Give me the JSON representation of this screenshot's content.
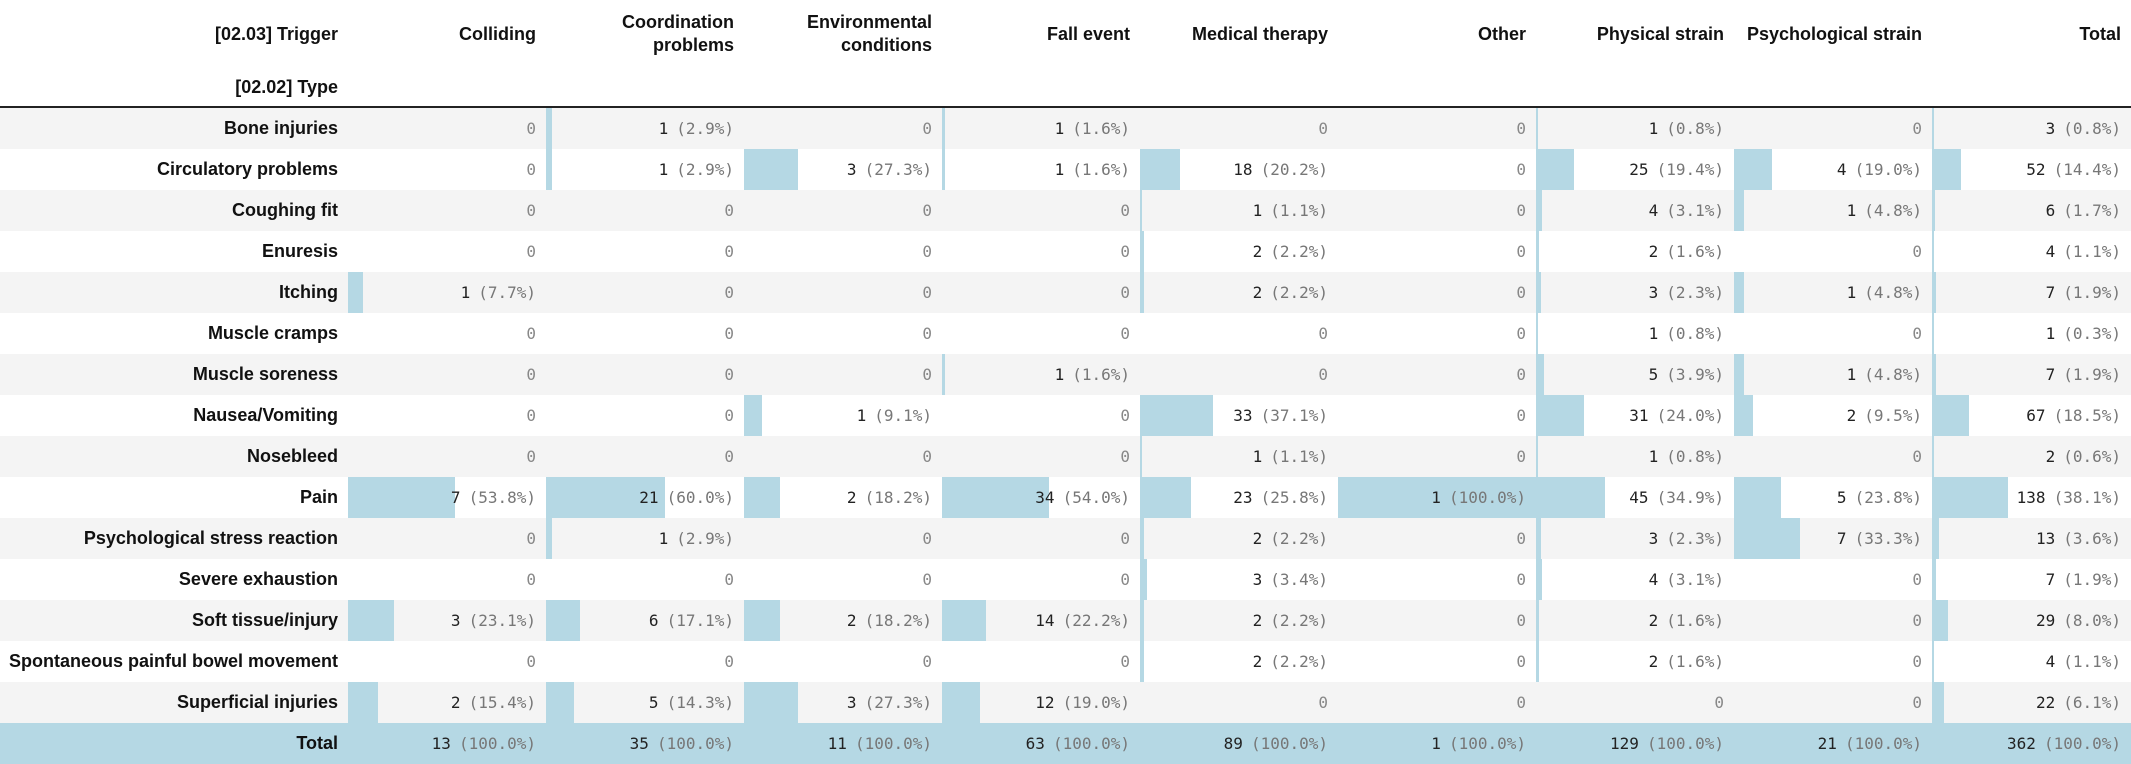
{
  "header": {
    "trigger_label": "[02.03] Trigger",
    "type_label": "[02.02] Type",
    "columns": [
      "Colliding",
      "Coordination problems",
      "Environmental conditions",
      "Fall event",
      "Medical therapy",
      "Other",
      "Physical strain",
      "Psychological strain",
      "Total"
    ]
  },
  "rows": [
    {
      "label": "Bone injuries",
      "cells": [
        {
          "n": "0",
          "p": ""
        },
        {
          "n": "1",
          "p": "(2.9%)",
          "frac": 0.029
        },
        {
          "n": "0",
          "p": ""
        },
        {
          "n": "1",
          "p": "(1.6%)",
          "frac": 0.016
        },
        {
          "n": "0",
          "p": ""
        },
        {
          "n": "0",
          "p": ""
        },
        {
          "n": "1",
          "p": "(0.8%)",
          "frac": 0.008
        },
        {
          "n": "0",
          "p": ""
        },
        {
          "n": "3",
          "p": "(0.8%)",
          "frac": 0.008
        }
      ]
    },
    {
      "label": "Circulatory problems",
      "cells": [
        {
          "n": "0",
          "p": ""
        },
        {
          "n": "1",
          "p": "(2.9%)",
          "frac": 0.029
        },
        {
          "n": "3",
          "p": "(27.3%)",
          "frac": 0.273
        },
        {
          "n": "1",
          "p": "(1.6%)",
          "frac": 0.016
        },
        {
          "n": "18",
          "p": "(20.2%)",
          "frac": 0.202
        },
        {
          "n": "0",
          "p": ""
        },
        {
          "n": "25",
          "p": "(19.4%)",
          "frac": 0.194
        },
        {
          "n": "4",
          "p": "(19.0%)",
          "frac": 0.19
        },
        {
          "n": "52",
          "p": "(14.4%)",
          "frac": 0.144
        }
      ]
    },
    {
      "label": "Coughing fit",
      "cells": [
        {
          "n": "0",
          "p": ""
        },
        {
          "n": "0",
          "p": ""
        },
        {
          "n": "0",
          "p": ""
        },
        {
          "n": "0",
          "p": ""
        },
        {
          "n": "1",
          "p": "(1.1%)",
          "frac": 0.011
        },
        {
          "n": "0",
          "p": ""
        },
        {
          "n": "4",
          "p": "(3.1%)",
          "frac": 0.031
        },
        {
          "n": "1",
          "p": "(4.8%)",
          "frac": 0.048
        },
        {
          "n": "6",
          "p": "(1.7%)",
          "frac": 0.017
        }
      ]
    },
    {
      "label": "Enuresis",
      "cells": [
        {
          "n": "0",
          "p": ""
        },
        {
          "n": "0",
          "p": ""
        },
        {
          "n": "0",
          "p": ""
        },
        {
          "n": "0",
          "p": ""
        },
        {
          "n": "2",
          "p": "(2.2%)",
          "frac": 0.022
        },
        {
          "n": "0",
          "p": ""
        },
        {
          "n": "2",
          "p": "(1.6%)",
          "frac": 0.016
        },
        {
          "n": "0",
          "p": ""
        },
        {
          "n": "4",
          "p": "(1.1%)",
          "frac": 0.011
        }
      ]
    },
    {
      "label": "Itching",
      "cells": [
        {
          "n": "1",
          "p": "(7.7%)",
          "frac": 0.077
        },
        {
          "n": "0",
          "p": ""
        },
        {
          "n": "0",
          "p": ""
        },
        {
          "n": "0",
          "p": ""
        },
        {
          "n": "2",
          "p": "(2.2%)",
          "frac": 0.022
        },
        {
          "n": "0",
          "p": ""
        },
        {
          "n": "3",
          "p": "(2.3%)",
          "frac": 0.023
        },
        {
          "n": "1",
          "p": "(4.8%)",
          "frac": 0.048
        },
        {
          "n": "7",
          "p": "(1.9%)",
          "frac": 0.019
        }
      ]
    },
    {
      "label": "Muscle cramps",
      "cells": [
        {
          "n": "0",
          "p": ""
        },
        {
          "n": "0",
          "p": ""
        },
        {
          "n": "0",
          "p": ""
        },
        {
          "n": "0",
          "p": ""
        },
        {
          "n": "0",
          "p": ""
        },
        {
          "n": "0",
          "p": ""
        },
        {
          "n": "1",
          "p": "(0.8%)",
          "frac": 0.008
        },
        {
          "n": "0",
          "p": ""
        },
        {
          "n": "1",
          "p": "(0.3%)",
          "frac": 0.003
        }
      ]
    },
    {
      "label": "Muscle soreness",
      "cells": [
        {
          "n": "0",
          "p": ""
        },
        {
          "n": "0",
          "p": ""
        },
        {
          "n": "0",
          "p": ""
        },
        {
          "n": "1",
          "p": "(1.6%)",
          "frac": 0.016
        },
        {
          "n": "0",
          "p": ""
        },
        {
          "n": "0",
          "p": ""
        },
        {
          "n": "5",
          "p": "(3.9%)",
          "frac": 0.039
        },
        {
          "n": "1",
          "p": "(4.8%)",
          "frac": 0.048
        },
        {
          "n": "7",
          "p": "(1.9%)",
          "frac": 0.019
        }
      ]
    },
    {
      "label": "Nausea/Vomiting",
      "cells": [
        {
          "n": "0",
          "p": ""
        },
        {
          "n": "0",
          "p": ""
        },
        {
          "n": "1",
          "p": "(9.1%)",
          "frac": 0.091
        },
        {
          "n": "0",
          "p": ""
        },
        {
          "n": "33",
          "p": "(37.1%)",
          "frac": 0.371
        },
        {
          "n": "0",
          "p": ""
        },
        {
          "n": "31",
          "p": "(24.0%)",
          "frac": 0.24
        },
        {
          "n": "2",
          "p": "(9.5%)",
          "frac": 0.095
        },
        {
          "n": "67",
          "p": "(18.5%)",
          "frac": 0.185
        }
      ]
    },
    {
      "label": "Nosebleed",
      "cells": [
        {
          "n": "0",
          "p": ""
        },
        {
          "n": "0",
          "p": ""
        },
        {
          "n": "0",
          "p": ""
        },
        {
          "n": "0",
          "p": ""
        },
        {
          "n": "1",
          "p": "(1.1%)",
          "frac": 0.011
        },
        {
          "n": "0",
          "p": ""
        },
        {
          "n": "1",
          "p": "(0.8%)",
          "frac": 0.008
        },
        {
          "n": "0",
          "p": ""
        },
        {
          "n": "2",
          "p": "(0.6%)",
          "frac": 0.006
        }
      ]
    },
    {
      "label": "Pain",
      "cells": [
        {
          "n": "7",
          "p": "(53.8%)",
          "frac": 0.538
        },
        {
          "n": "21",
          "p": "(60.0%)",
          "frac": 0.6
        },
        {
          "n": "2",
          "p": "(18.2%)",
          "frac": 0.182
        },
        {
          "n": "34",
          "p": "(54.0%)",
          "frac": 0.54
        },
        {
          "n": "23",
          "p": "(25.8%)",
          "frac": 0.258
        },
        {
          "n": "1",
          "p": "(100.0%)",
          "frac": 1.0
        },
        {
          "n": "45",
          "p": "(34.9%)",
          "frac": 0.349
        },
        {
          "n": "5",
          "p": "(23.8%)",
          "frac": 0.238
        },
        {
          "n": "138",
          "p": "(38.1%)",
          "frac": 0.381
        }
      ]
    },
    {
      "label": "Psychological stress reaction",
      "cells": [
        {
          "n": "0",
          "p": ""
        },
        {
          "n": "1",
          "p": "(2.9%)",
          "frac": 0.029
        },
        {
          "n": "0",
          "p": ""
        },
        {
          "n": "0",
          "p": ""
        },
        {
          "n": "2",
          "p": "(2.2%)",
          "frac": 0.022
        },
        {
          "n": "0",
          "p": ""
        },
        {
          "n": "3",
          "p": "(2.3%)",
          "frac": 0.023
        },
        {
          "n": "7",
          "p": "(33.3%)",
          "frac": 0.333
        },
        {
          "n": "13",
          "p": "(3.6%)",
          "frac": 0.036
        }
      ]
    },
    {
      "label": "Severe exhaustion",
      "cells": [
        {
          "n": "0",
          "p": ""
        },
        {
          "n": "0",
          "p": ""
        },
        {
          "n": "0",
          "p": ""
        },
        {
          "n": "0",
          "p": ""
        },
        {
          "n": "3",
          "p": "(3.4%)",
          "frac": 0.034
        },
        {
          "n": "0",
          "p": ""
        },
        {
          "n": "4",
          "p": "(3.1%)",
          "frac": 0.031
        },
        {
          "n": "0",
          "p": ""
        },
        {
          "n": "7",
          "p": "(1.9%)",
          "frac": 0.019
        }
      ]
    },
    {
      "label": "Soft tissue/injury",
      "cells": [
        {
          "n": "3",
          "p": "(23.1%)",
          "frac": 0.231
        },
        {
          "n": "6",
          "p": "(17.1%)",
          "frac": 0.171
        },
        {
          "n": "2",
          "p": "(18.2%)",
          "frac": 0.182
        },
        {
          "n": "14",
          "p": "(22.2%)",
          "frac": 0.222
        },
        {
          "n": "2",
          "p": "(2.2%)",
          "frac": 0.022
        },
        {
          "n": "0",
          "p": ""
        },
        {
          "n": "2",
          "p": "(1.6%)",
          "frac": 0.016
        },
        {
          "n": "0",
          "p": ""
        },
        {
          "n": "29",
          "p": "(8.0%)",
          "frac": 0.08
        }
      ]
    },
    {
      "label": "Spontaneous painful bowel movement",
      "cells": [
        {
          "n": "0",
          "p": ""
        },
        {
          "n": "0",
          "p": ""
        },
        {
          "n": "0",
          "p": ""
        },
        {
          "n": "0",
          "p": ""
        },
        {
          "n": "2",
          "p": "(2.2%)",
          "frac": 0.022
        },
        {
          "n": "0",
          "p": ""
        },
        {
          "n": "2",
          "p": "(1.6%)",
          "frac": 0.016
        },
        {
          "n": "0",
          "p": ""
        },
        {
          "n": "4",
          "p": "(1.1%)",
          "frac": 0.011
        }
      ]
    },
    {
      "label": "Superficial injuries",
      "cells": [
        {
          "n": "2",
          "p": "(15.4%)",
          "frac": 0.154
        },
        {
          "n": "5",
          "p": "(14.3%)",
          "frac": 0.143
        },
        {
          "n": "3",
          "p": "(27.3%)",
          "frac": 0.273
        },
        {
          "n": "12",
          "p": "(19.0%)",
          "frac": 0.19
        },
        {
          "n": "0",
          "p": ""
        },
        {
          "n": "0",
          "p": ""
        },
        {
          "n": "0",
          "p": ""
        },
        {
          "n": "0",
          "p": ""
        },
        {
          "n": "22",
          "p": "(6.1%)",
          "frac": 0.061
        }
      ]
    },
    {
      "label": "Total",
      "total": true,
      "cells": [
        {
          "n": "13",
          "p": "(100.0%)",
          "frac": 1.0
        },
        {
          "n": "35",
          "p": "(100.0%)",
          "frac": 1.0
        },
        {
          "n": "11",
          "p": "(100.0%)",
          "frac": 1.0
        },
        {
          "n": "63",
          "p": "(100.0%)",
          "frac": 1.0
        },
        {
          "n": "89",
          "p": "(100.0%)",
          "frac": 1.0
        },
        {
          "n": "1",
          "p": "(100.0%)",
          "frac": 1.0
        },
        {
          "n": "129",
          "p": "(100.0%)",
          "frac": 1.0
        },
        {
          "n": "21",
          "p": "(100.0%)",
          "frac": 1.0
        },
        {
          "n": "362",
          "p": "(100.0%)",
          "frac": 1.0
        }
      ]
    }
  ],
  "colors": {
    "bar": "#b5d8e4",
    "stripe": "#f4f4f4",
    "header_rule": "#222222"
  }
}
